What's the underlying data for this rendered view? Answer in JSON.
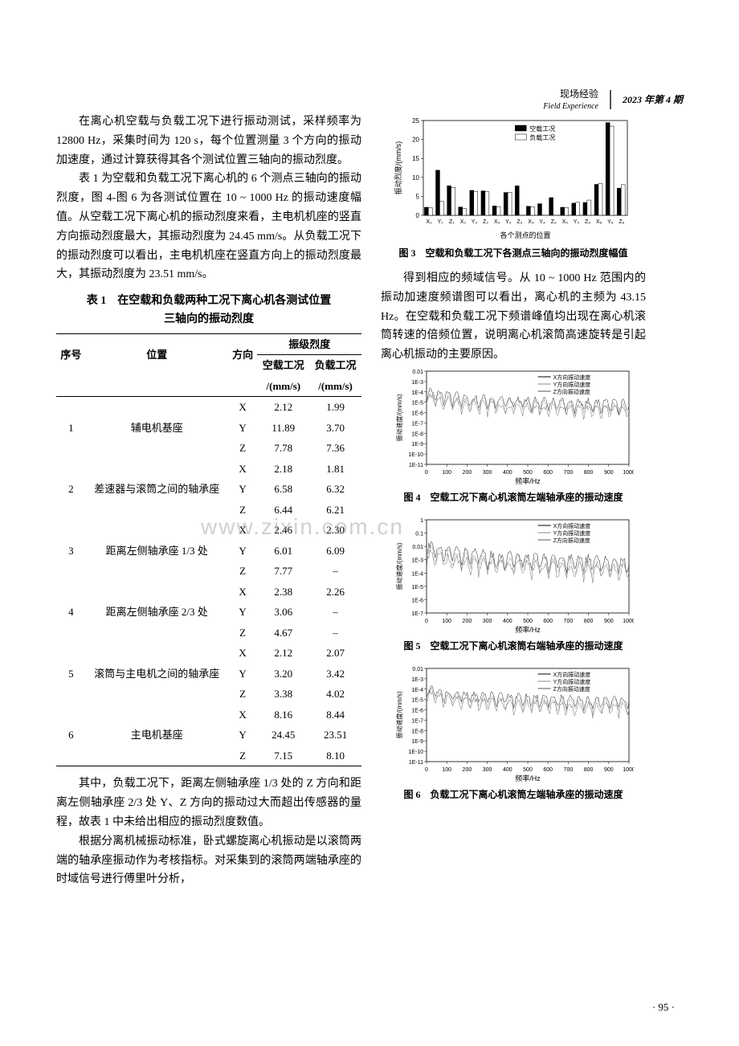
{
  "header": {
    "cn": "现场经验",
    "en": "Field Experience",
    "issue": "2023 年第 4 期"
  },
  "watermark": "www.zixin.com.cn",
  "para1": "在离心机空载与负载工况下进行振动测试，采样频率为 12800 Hz，采集时间为 120 s，每个位置测量 3 个方向的振动加速度，通过计算获得其各个测试位置三轴向的振动烈度。",
  "para2": "表 1 为空载和负载工况下离心机的 6 个测点三轴向的振动烈度，图 4-图 6 为各测试位置在 10 ~ 1000 Hz 的振动速度幅值。从空载工况下离心机的振动烈度来看，主电机机座的竖直方向振动烈度最大，其振动烈度为 24.45 mm/s。从负载工况下的振动烈度可以看出，主电机机座在竖直方向上的振动烈度最大，其振动烈度为 23.51 mm/s。",
  "table1": {
    "title_line1": "表 1　在空载和负载两种工况下离心机各测试位置",
    "title_line2": "三轴向的振动烈度",
    "header_group": "振级烈度",
    "cols": [
      "序号",
      "位置",
      "方向",
      "空载工况",
      "负载工况"
    ],
    "unit": "/(mm/s)",
    "rows": [
      {
        "no": "1",
        "pos": "辅电机基座",
        "dirs": [
          [
            "X",
            "2.12",
            "1.99"
          ],
          [
            "Y",
            "11.89",
            "3.70"
          ],
          [
            "Z",
            "7.78",
            "7.36"
          ]
        ]
      },
      {
        "no": "2",
        "pos": "差速器与滚筒之间的轴承座",
        "dirs": [
          [
            "X",
            "2.18",
            "1.81"
          ],
          [
            "Y",
            "6.58",
            "6.32"
          ],
          [
            "Z",
            "6.44",
            "6.21"
          ]
        ]
      },
      {
        "no": "3",
        "pos": "距离左侧轴承座 1/3 处",
        "dirs": [
          [
            "X",
            "2.46",
            "2.30"
          ],
          [
            "Y",
            "6.01",
            "6.09"
          ],
          [
            "Z",
            "7.77",
            "–"
          ]
        ]
      },
      {
        "no": "4",
        "pos": "距离左侧轴承座 2/3 处",
        "dirs": [
          [
            "X",
            "2.38",
            "2.26"
          ],
          [
            "Y",
            "3.06",
            "–"
          ],
          [
            "Z",
            "4.67",
            "–"
          ]
        ]
      },
      {
        "no": "5",
        "pos": "滚筒与主电机之间的轴承座",
        "dirs": [
          [
            "X",
            "2.12",
            "2.07"
          ],
          [
            "Y",
            "3.20",
            "3.42"
          ],
          [
            "Z",
            "3.38",
            "4.02"
          ]
        ]
      },
      {
        "no": "6",
        "pos": "主电机基座",
        "dirs": [
          [
            "X",
            "8.16",
            "8.44"
          ],
          [
            "Y",
            "24.45",
            "23.51"
          ],
          [
            "Z",
            "7.15",
            "8.10"
          ]
        ]
      }
    ]
  },
  "para3": "其中，负载工况下，距离左侧轴承座 1/3 处的 Z 方向和距离左侧轴承座 2/3 处 Y、Z 方向的振动过大而超出传感器的量程，故表 1 中未给出相应的振动烈度数值。",
  "para4": "根据分离机械振动标准，卧式螺旋离心机振动是以滚筒两端的轴承座振动作为考核指标。对采集到的滚筒两端轴承座的时域信号进行傅里叶分析，",
  "para5": "得到相应的频域信号。从 10 ~ 1000 Hz 范围内的振动加速度频谱图可以看出，离心机的主频为 43.15 Hz。在空载和负载工况下频谱峰值均出现在离心机滚筒转速的倍频位置，说明离心机滚筒高速旋转是引起离心机振动的主要原因。",
  "fig3": {
    "caption": "图 3　空载和负载工况下各测点三轴向的振动烈度幅值",
    "type": "bar",
    "ylabel": "振动烈度/(mm/s)",
    "xlabel": "各个测点的位置",
    "categories": [
      "X₁",
      "Y₁",
      "Z₁",
      "X₂",
      "Y₂",
      "Z₂",
      "X₃",
      "Y₃",
      "Z₃",
      "X₄",
      "Y₄",
      "Z₄",
      "X₅",
      "Y₅",
      "Z₅",
      "X₆",
      "Y₆",
      "Z₆"
    ],
    "series": [
      {
        "name": "空载工况",
        "color": "#000000",
        "values": [
          2.12,
          11.89,
          7.78,
          2.18,
          6.58,
          6.44,
          2.46,
          6.01,
          7.77,
          2.38,
          3.06,
          4.67,
          2.12,
          3.2,
          3.38,
          8.16,
          24.45,
          7.15
        ]
      },
      {
        "name": "负载工况",
        "color": "#ffffff",
        "values": [
          1.99,
          3.7,
          7.36,
          1.81,
          6.32,
          6.21,
          2.3,
          6.09,
          0,
          2.26,
          0,
          0,
          2.07,
          3.42,
          4.02,
          8.44,
          23.51,
          8.1
        ]
      }
    ],
    "ylim": [
      0,
      25
    ],
    "ytick_step": 5,
    "bar_width": 0.35,
    "background": "#ffffff",
    "grid_color": "#e0e0e0",
    "label_fontsize": 9
  },
  "fig4": {
    "caption": "图 4　空载工况下离心机滚筒左端轴承座的振动速度",
    "type": "line-spectrum",
    "ylabel": "振动速度/(mm/s)",
    "xlabel": "频率/Hz",
    "xlim": [
      0,
      1000
    ],
    "xtick_step": 100,
    "yscale": "log",
    "ylim": [
      "1E-11",
      "0.01"
    ],
    "series": [
      {
        "name": "X方向振动速度",
        "color": "#000000"
      },
      {
        "name": "Y方向振动速度",
        "color": "#888888"
      },
      {
        "name": "Z方向振动速度",
        "color": "#555555"
      }
    ],
    "main_freq": 43.15,
    "label_fontsize": 8
  },
  "fig5": {
    "caption": "图 5　空载工况下离心机滚筒右端轴承座的振动速度",
    "type": "line-spectrum",
    "ylabel": "振动速度/(mm/s)",
    "xlabel": "频率/Hz",
    "xlim": [
      0,
      1000
    ],
    "xtick_step": 100,
    "yscale": "log",
    "ylim": [
      "1E-7",
      "1"
    ],
    "series": [
      {
        "name": "X方向振动速度",
        "color": "#000000"
      },
      {
        "name": "Y方向振动速度",
        "color": "#888888"
      },
      {
        "name": "Z方向振动速度",
        "color": "#555555"
      }
    ],
    "main_freq": 43.15,
    "label_fontsize": 8
  },
  "fig6": {
    "caption": "图 6　负载工况下离心机滚筒左端轴承座的振动速度",
    "type": "line-spectrum",
    "ylabel": "振动速度/(mm/s)",
    "xlabel": "频率/Hz",
    "xlim": [
      0,
      1000
    ],
    "xtick_step": 100,
    "yscale": "log",
    "ylim": [
      "1E-11",
      "0.01"
    ],
    "series": [
      {
        "name": "X方向振动速度",
        "color": "#000000"
      },
      {
        "name": "Y方向振动速度",
        "color": "#888888"
      },
      {
        "name": "Z方向振动速度",
        "color": "#555555"
      }
    ],
    "main_freq": 43.15,
    "label_fontsize": 8
  },
  "page_number": "· 95 ·"
}
